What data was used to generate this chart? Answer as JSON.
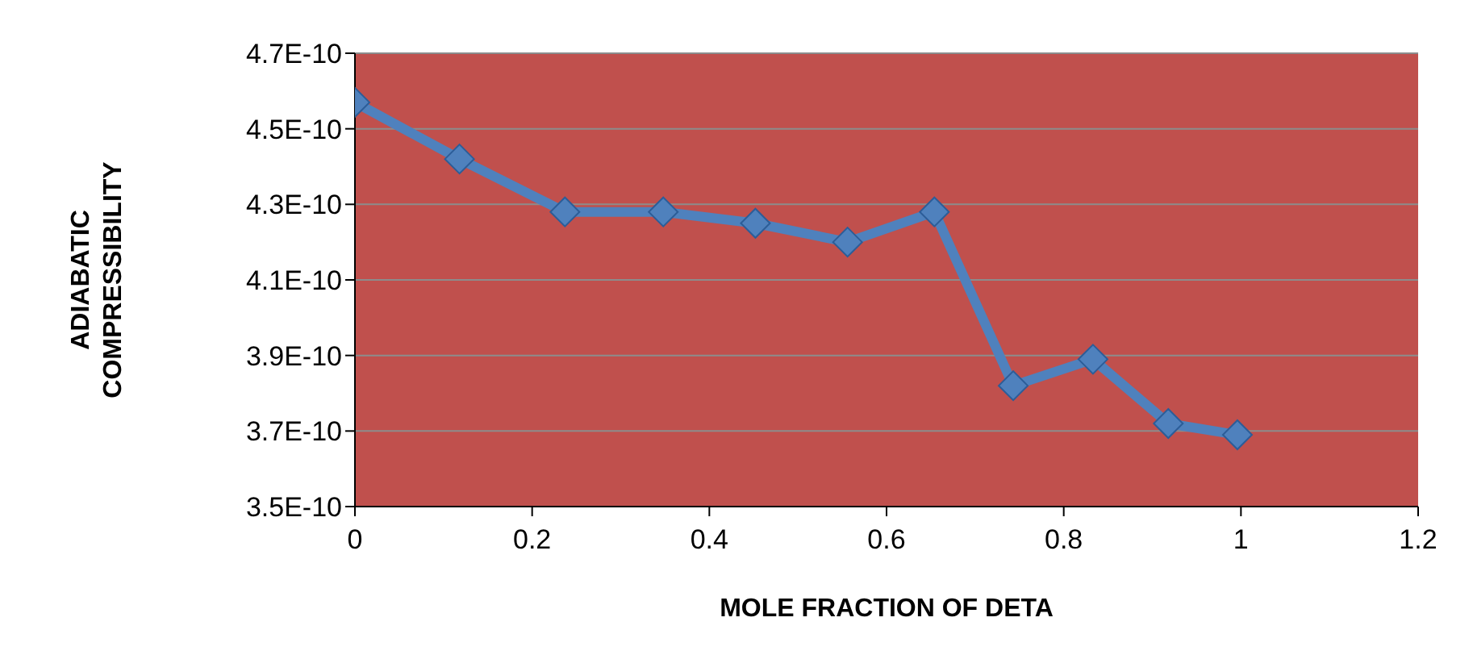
{
  "chart_data": {
    "type": "line",
    "xlabel": "MOLE FRACTION OF DETA",
    "ylabel": "ADIABATIC COMPRESSIBILITY",
    "x": [
      0,
      0.118,
      0.237,
      0.348,
      0.452,
      0.556,
      0.654,
      0.743,
      0.833,
      0.918,
      0.996
    ],
    "series": [
      {
        "color": "#4f81bd",
        "values": [
          4.57e-10,
          4.42e-10,
          4.28e-10,
          4.28e-10,
          4.25e-10,
          4.2e-10,
          4.28e-10,
          3.82e-10,
          3.89e-10,
          3.72e-10,
          3.69e-10
        ]
      }
    ],
    "xlim": [
      0,
      1.2
    ],
    "xticks": [
      0,
      0.2,
      0.4,
      0.6,
      0.8,
      1,
      1.2
    ],
    "ylim": [
      3.5e-10,
      4.7e-10
    ],
    "yticks": [
      {
        "value": 3.5e-10,
        "label": "3.5E-10"
      },
      {
        "value": 3.7e-10,
        "label": "3.7E-10"
      },
      {
        "value": 3.9e-10,
        "label": "3.9E-10"
      },
      {
        "value": 4.1e-10,
        "label": "4.1E-10"
      },
      {
        "value": 4.3e-10,
        "label": "4.3E-10"
      },
      {
        "value": 4.5e-10,
        "label": "4.5E-10"
      },
      {
        "value": 4.7e-10,
        "label": "4.7E-10"
      }
    ],
    "grid": "y",
    "marker": "diamond",
    "line_style": "solid"
  }
}
